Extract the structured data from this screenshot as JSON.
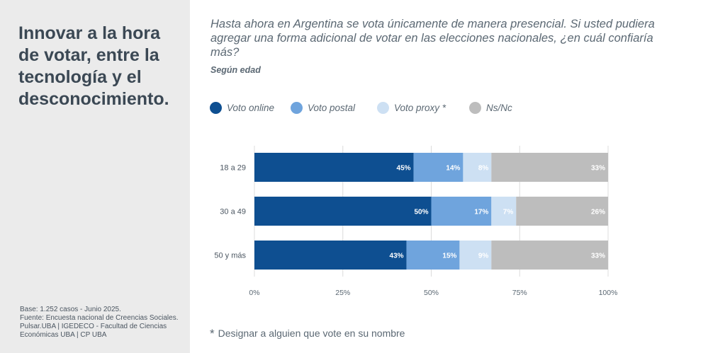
{
  "sidebar": {
    "title": "Innovar a la hora\nde votar, entre la\ntecnología y el\ndesconocimiento.",
    "source_line1": "Base: 1.252 casos - Junio 2025.",
    "source_line2": "Fuente: Encuesta nacional de Creencias Sociales. Pulsar.UBA | IGEDECO - Facultad de Ciencias Económicas UBA | CP UBA"
  },
  "header": {
    "question": "Hasta ahora en Argentina se vota únicamente de manera presencial. Si usted pudiera agregar una forma adicional de votar en las elecciones nacionales, ¿en cuál confiaría más?",
    "subtitle": "Según edad"
  },
  "legend": [
    {
      "label": "Voto online",
      "color": "#0e4f91"
    },
    {
      "label": "Voto postal",
      "color": "#6fa4dd"
    },
    {
      "label": "Voto proxy *",
      "color": "#cde0f3"
    },
    {
      "label": "Ns/Nc",
      "color": "#bdbdbd"
    }
  ],
  "footnote": {
    "star": "*",
    "text": "Designar a alguien que vote en su nombre"
  },
  "chart_data": {
    "type": "bar",
    "orientation": "horizontal",
    "stacked": true,
    "categories": [
      "18 a 29",
      "30 a 49",
      "50 y más"
    ],
    "series": [
      {
        "name": "Voto online",
        "values": [
          45,
          50,
          43
        ],
        "color": "#0e4f91"
      },
      {
        "name": "Voto postal",
        "values": [
          14,
          17,
          15
        ],
        "color": "#6fa4dd"
      },
      {
        "name": "Voto proxy *",
        "values": [
          8,
          7,
          9
        ],
        "color": "#cde0f3"
      },
      {
        "name": "Ns/Nc",
        "values": [
          33,
          26,
          33
        ],
        "color": "#bdbdbd"
      }
    ],
    "xlim": [
      0,
      100
    ],
    "x_ticks": [
      "0%",
      "25%",
      "50%",
      "75%",
      "100%"
    ],
    "value_suffix": "%",
    "grid": true,
    "legend_position": "top"
  }
}
